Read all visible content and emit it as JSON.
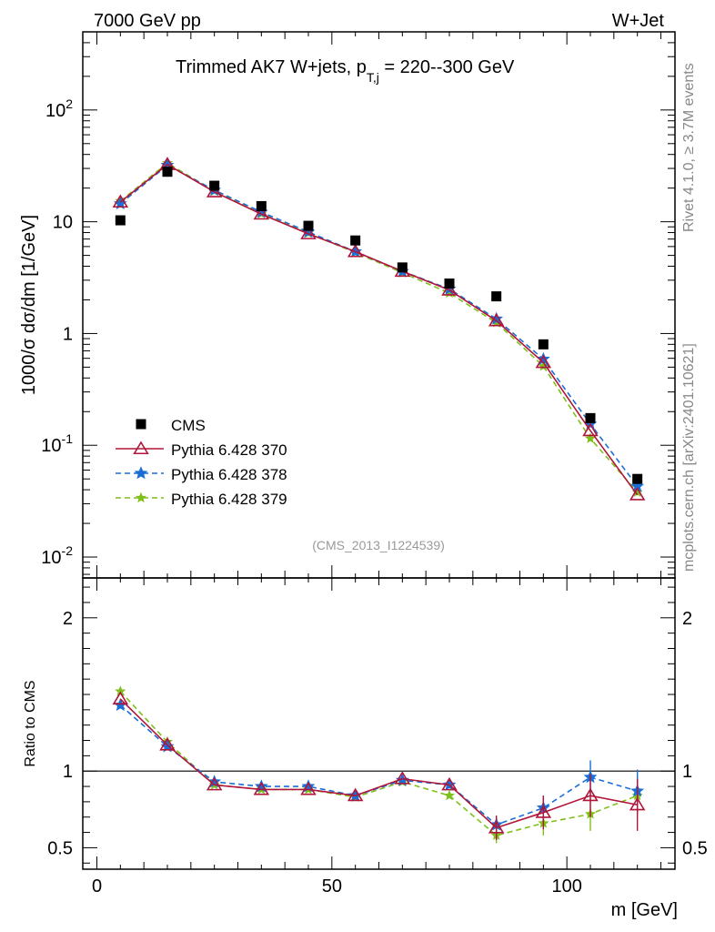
{
  "header": {
    "energy_label": "7000 GeV pp",
    "process_label": "W+Jet",
    "title": "Trimmed AK7 W+jets, ",
    "title_pt": "p",
    "title_sub": "T,j",
    "title_range": " = 220--300 GeV",
    "side_rivet": "Rivet 4.1.0, ≥ 3.7M events",
    "side_mcplots": "mcplots.cern.ch [arXiv:2401.10621]",
    "analysis_id": "(CMS_2013_I1224539)"
  },
  "colors": {
    "cms": "#000000",
    "p370": "#b0153a",
    "p378": "#1a6fd6",
    "p379": "#7fbf1a"
  },
  "chart_data": [
    {
      "type": "scatter",
      "panel": "main",
      "ylabel": "1000/σ  dσ/dm [1/GeV]",
      "yscale": "log",
      "xlim": [
        -3,
        123
      ],
      "ylim": [
        0.0065,
        500
      ],
      "y_ticks": [
        "10^{-2}",
        "10^{-1}",
        "1",
        "10",
        "10^{2}"
      ],
      "legend": [
        "CMS",
        "Pythia 6.428 370",
        "Pythia 6.428 378",
        "Pythia 6.428 379"
      ],
      "legend_position": "center-left",
      "x": [
        5,
        15,
        25,
        35,
        45,
        55,
        65,
        75,
        85,
        95,
        105,
        115
      ],
      "series": [
        {
          "name": "CMS",
          "values": [
            10.3,
            28.0,
            21.0,
            13.8,
            9.2,
            6.8,
            3.9,
            2.8,
            2.15,
            0.8,
            0.175,
            0.05
          ]
        },
        {
          "name": "Pythia 6.428 370",
          "values": [
            15.0,
            32.5,
            18.5,
            11.7,
            7.8,
            5.4,
            3.6,
            2.45,
            1.3,
            0.55,
            0.135,
            0.036
          ]
        },
        {
          "name": "Pythia 6.428 378",
          "values": [
            14.5,
            32.0,
            19.2,
            12.2,
            8.1,
            5.4,
            3.6,
            2.5,
            1.35,
            0.59,
            0.155,
            0.043
          ]
        },
        {
          "name": "Pythia 6.428 379",
          "values": [
            15.3,
            33.5,
            18.8,
            11.8,
            7.9,
            5.3,
            3.5,
            2.3,
            1.25,
            0.51,
            0.115,
            0.038
          ]
        }
      ]
    },
    {
      "type": "line",
      "panel": "ratio",
      "ylabel": "Ratio to CMS",
      "xlabel": "m [GeV]",
      "ylim": [
        0.36,
        2.26
      ],
      "y_ticks": [
        "0.5",
        "1",
        "2"
      ],
      "x_ticks": [
        "0",
        "50",
        "100"
      ],
      "x": [
        5,
        15,
        25,
        35,
        45,
        55,
        65,
        75,
        85,
        95,
        105,
        115
      ],
      "series": [
        {
          "name": "Pythia 6.428 370",
          "values": [
            1.47,
            1.17,
            0.91,
            0.88,
            0.88,
            0.84,
            0.95,
            0.91,
            0.63,
            0.73,
            0.84,
            0.78
          ]
        },
        {
          "name": "Pythia 6.428 378",
          "values": [
            1.43,
            1.16,
            0.93,
            0.9,
            0.9,
            0.84,
            0.94,
            0.91,
            0.65,
            0.76,
            0.96,
            0.87
          ]
        },
        {
          "name": "Pythia 6.428 379",
          "values": [
            1.52,
            1.19,
            0.91,
            0.88,
            0.88,
            0.83,
            0.93,
            0.84,
            0.58,
            0.66,
            0.72,
            0.84
          ]
        }
      ]
    }
  ]
}
